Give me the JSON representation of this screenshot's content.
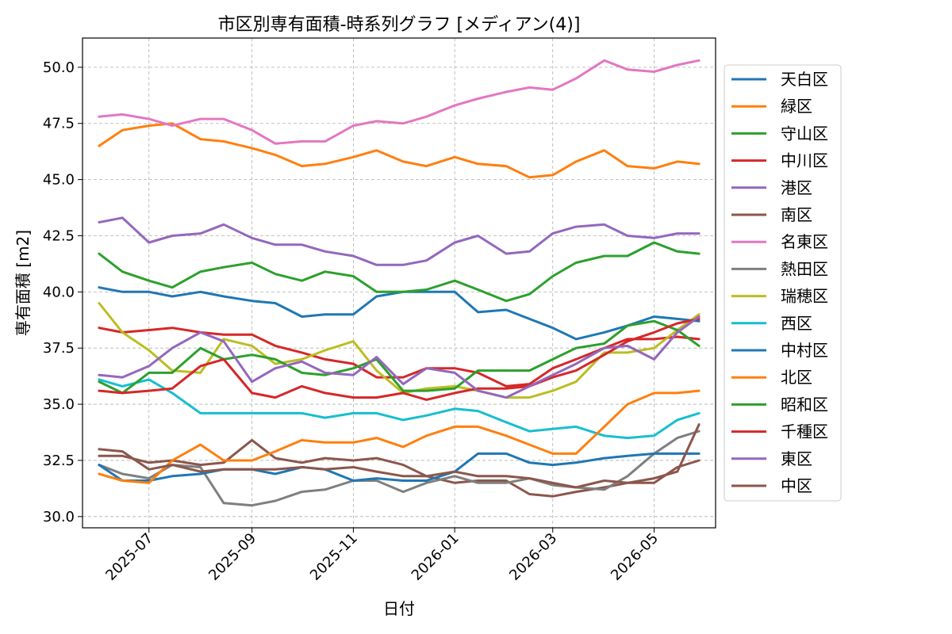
{
  "chart_data": {
    "type": "line",
    "title": "市区別専有面積-時系列グラフ [メディアン(4)]",
    "xlabel": "日付",
    "ylabel": "専有面積 [m2]",
    "xlim": [
      "2025-05-22",
      "2026-06-07"
    ],
    "ylim": [
      29.5,
      51.3
    ],
    "yticks": [
      30.0,
      32.5,
      35.0,
      37.5,
      40.0,
      42.5,
      45.0,
      47.5,
      50.0
    ],
    "xticks": [
      "2025-07-01",
      "2025-09-01",
      "2025-11-01",
      "2026-01-01",
      "2026-03-01",
      "2026-05-01"
    ],
    "xtick_labels": [
      "2025-07",
      "2025-09",
      "2025-11",
      "2026-01",
      "2026-03",
      "2026-05"
    ],
    "grid": true,
    "legend_position": "right",
    "x": [
      "2025-06-01",
      "2025-06-15",
      "2025-07-01",
      "2025-07-15",
      "2025-08-01",
      "2025-08-15",
      "2025-09-01",
      "2025-09-15",
      "2025-10-01",
      "2025-10-15",
      "2025-11-01",
      "2025-11-15",
      "2025-12-01",
      "2025-12-15",
      "2026-01-01",
      "2026-01-15",
      "2026-02-01",
      "2026-02-15",
      "2026-03-01",
      "2026-03-15",
      "2026-04-01",
      "2026-04-15",
      "2026-05-01",
      "2026-05-15",
      "2026-05-28"
    ],
    "series": [
      {
        "name": "天白区",
        "color": "#1f77b4",
        "values": [
          40.2,
          40.0,
          40.0,
          39.8,
          40.0,
          39.8,
          39.6,
          39.5,
          38.9,
          39.0,
          39.0,
          39.8,
          40.0,
          40.0,
          40.0,
          39.1,
          39.2,
          38.8,
          38.4,
          37.9,
          38.2,
          38.5,
          38.9,
          38.8,
          38.7
        ]
      },
      {
        "name": "緑区",
        "color": "#ff7f0e",
        "values": [
          46.5,
          47.2,
          47.4,
          47.5,
          46.8,
          46.7,
          46.4,
          46.1,
          45.6,
          45.7,
          46.0,
          46.3,
          45.8,
          45.6,
          46.0,
          45.7,
          45.6,
          45.1,
          45.2,
          45.8,
          46.3,
          45.6,
          45.5,
          45.8,
          45.7
        ]
      },
      {
        "name": "守山区",
        "color": "#2ca02c",
        "values": [
          41.7,
          40.9,
          40.5,
          40.2,
          40.9,
          41.1,
          41.3,
          40.8,
          40.5,
          40.9,
          40.7,
          40.0,
          40.0,
          40.1,
          40.5,
          40.1,
          39.6,
          39.9,
          40.7,
          41.3,
          41.6,
          41.6,
          42.2,
          41.8,
          41.7
        ]
      },
      {
        "name": "中川区",
        "color": "#d62728",
        "values": [
          38.4,
          38.2,
          38.3,
          38.4,
          38.2,
          38.1,
          38.1,
          37.6,
          37.3,
          37.0,
          36.8,
          36.2,
          36.2,
          36.6,
          36.6,
          36.4,
          35.8,
          35.9,
          36.6,
          37.0,
          37.5,
          37.9,
          37.9,
          38.0,
          37.9
        ]
      },
      {
        "name": "港区",
        "color": "#9467bd",
        "values": [
          43.1,
          43.3,
          42.2,
          42.5,
          42.6,
          43.0,
          42.4,
          42.1,
          42.1,
          41.8,
          41.6,
          41.2,
          41.2,
          41.4,
          42.2,
          42.5,
          41.7,
          41.8,
          42.6,
          42.9,
          43.0,
          42.5,
          42.4,
          42.6,
          42.6
        ]
      },
      {
        "name": "南区",
        "color": "#8c564b",
        "values": [
          32.7,
          32.7,
          32.4,
          32.5,
          32.3,
          32.4,
          33.4,
          32.6,
          32.4,
          32.6,
          32.5,
          32.6,
          32.3,
          31.8,
          31.5,
          31.6,
          31.6,
          31.0,
          30.9,
          31.1,
          31.3,
          31.5,
          31.5,
          32.2,
          32.5
        ]
      },
      {
        "name": "名東区",
        "color": "#e377c2",
        "values": [
          47.8,
          47.9,
          47.7,
          47.4,
          47.7,
          47.7,
          47.2,
          46.6,
          46.7,
          46.7,
          47.4,
          47.6,
          47.5,
          47.8,
          48.3,
          48.6,
          48.9,
          49.1,
          49.0,
          49.5,
          50.3,
          49.9,
          49.8,
          50.1,
          50.3
        ]
      },
      {
        "name": "熱田区",
        "color": "#7f7f7f",
        "values": [
          32.3,
          31.9,
          31.7,
          32.3,
          32.2,
          30.6,
          30.5,
          30.7,
          31.1,
          31.2,
          31.6,
          31.6,
          31.1,
          31.5,
          31.8,
          31.5,
          31.5,
          31.7,
          31.4,
          31.3,
          31.2,
          31.8,
          32.8,
          33.5,
          33.8
        ]
      },
      {
        "name": "瑞穂区",
        "color": "#bcbd22",
        "values": [
          39.5,
          38.2,
          37.4,
          36.5,
          36.4,
          37.9,
          37.6,
          36.8,
          37.0,
          37.4,
          37.8,
          36.5,
          35.5,
          35.7,
          35.8,
          35.6,
          35.3,
          35.3,
          35.6,
          36.0,
          37.3,
          37.3,
          37.5,
          38.3,
          39.0
        ]
      },
      {
        "name": "西区",
        "color": "#17becf",
        "values": [
          36.1,
          35.8,
          36.1,
          35.5,
          34.6,
          34.6,
          34.6,
          34.6,
          34.6,
          34.4,
          34.6,
          34.6,
          34.3,
          34.5,
          34.8,
          34.7,
          34.2,
          33.8,
          33.9,
          34.0,
          33.6,
          33.5,
          33.6,
          34.3,
          34.6
        ]
      },
      {
        "name": "中村区",
        "color": "#1f77b4",
        "values": [
          32.3,
          31.6,
          31.6,
          31.8,
          31.9,
          32.1,
          32.1,
          31.9,
          32.2,
          32.1,
          31.6,
          31.7,
          31.6,
          31.6,
          32.0,
          32.8,
          32.8,
          32.4,
          32.3,
          32.4,
          32.6,
          32.7,
          32.8,
          32.8,
          32.8
        ]
      },
      {
        "name": "北区",
        "color": "#ff7f0e",
        "values": [
          31.9,
          31.6,
          31.5,
          32.5,
          33.2,
          32.5,
          32.5,
          32.9,
          33.4,
          33.3,
          33.3,
          33.5,
          33.1,
          33.6,
          34.0,
          34.0,
          33.6,
          33.2,
          32.8,
          32.8,
          34.0,
          35.0,
          35.5,
          35.5,
          35.6
        ]
      },
      {
        "name": "昭和区",
        "color": "#2ca02c",
        "values": [
          36.0,
          35.5,
          36.4,
          36.4,
          37.5,
          37.0,
          37.2,
          37.0,
          36.4,
          36.3,
          36.6,
          37.0,
          35.6,
          35.6,
          35.7,
          36.5,
          36.5,
          36.5,
          37.0,
          37.5,
          37.7,
          38.5,
          38.7,
          38.3,
          37.6
        ]
      },
      {
        "name": "千種区",
        "color": "#d62728",
        "values": [
          35.6,
          35.5,
          35.6,
          35.7,
          36.7,
          37.0,
          35.5,
          35.3,
          35.8,
          35.5,
          35.3,
          35.3,
          35.5,
          35.2,
          35.5,
          35.7,
          35.7,
          35.8,
          36.2,
          36.5,
          37.2,
          37.8,
          38.2,
          38.6,
          38.8
        ]
      },
      {
        "name": "東区",
        "color": "#9467bd",
        "values": [
          36.3,
          36.2,
          36.7,
          37.5,
          38.2,
          37.8,
          36.0,
          36.6,
          36.9,
          36.4,
          36.3,
          37.1,
          35.9,
          36.6,
          36.4,
          35.6,
          35.3,
          35.8,
          36.3,
          36.8,
          37.5,
          37.6,
          37.0,
          38.2,
          38.9
        ]
      },
      {
        "name": "中区",
        "color": "#8c564b",
        "values": [
          33.0,
          32.9,
          32.1,
          32.3,
          32.0,
          32.1,
          32.1,
          32.1,
          32.2,
          32.1,
          32.2,
          32.0,
          31.8,
          31.8,
          32.0,
          31.8,
          31.8,
          31.7,
          31.5,
          31.3,
          31.6,
          31.5,
          31.7,
          32.0,
          34.1
        ]
      }
    ]
  }
}
